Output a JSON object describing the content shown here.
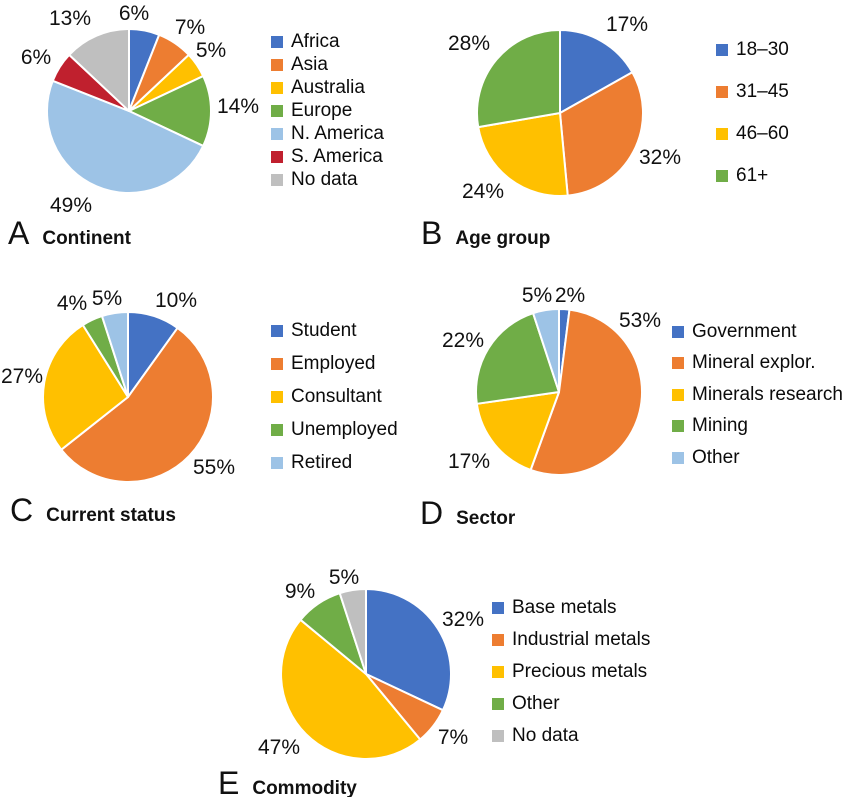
{
  "figure": {
    "name": "Survey results pie charts",
    "background": "#ffffff",
    "text_color": "#111111",
    "palette": {
      "blue": "#4472C4",
      "orange": "#ED7D31",
      "yellow": "#FFC000",
      "green": "#70AD47",
      "light_blue": "#9DC3E6",
      "dark_red": "#C0202E",
      "gray": "#BFBFBF"
    }
  },
  "chart_data": [
    {
      "type": "pie",
      "panel": "A",
      "title": "Continent",
      "legend_position": "right",
      "start_angle_deg": -90,
      "direction": "clockwise",
      "categories": [
        "Africa",
        "Asia",
        "Australia",
        "Europe",
        "N. America",
        "S. America",
        "No data"
      ],
      "values": [
        6,
        7,
        5,
        14,
        49,
        6,
        13
      ],
      "slice_labels": [
        "6%",
        "7%",
        "5%",
        "14%",
        "49%",
        "6%",
        "13%"
      ],
      "colors": [
        "#4472C4",
        "#ED7D31",
        "#FFC000",
        "#70AD47",
        "#9DC3E6",
        "#C0202E",
        "#BFBFBF"
      ]
    },
    {
      "type": "pie",
      "panel": "B",
      "title": "Age group",
      "legend_position": "right",
      "start_angle_deg": -90,
      "direction": "clockwise",
      "categories": [
        "18–30",
        "31–45",
        "46–60",
        "61+"
      ],
      "values": [
        17,
        32,
        24,
        28
      ],
      "slice_labels": [
        "17%",
        "32%",
        "24%",
        "28%"
      ],
      "colors": [
        "#4472C4",
        "#ED7D31",
        "#FFC000",
        "#70AD47"
      ]
    },
    {
      "type": "pie",
      "panel": "C",
      "title": "Current status",
      "legend_position": "right",
      "start_angle_deg": -90,
      "direction": "clockwise",
      "categories": [
        "Student",
        "Employed",
        "Consultant",
        "Unemployed",
        "Retired"
      ],
      "values": [
        10,
        55,
        27,
        4,
        5
      ],
      "slice_labels": [
        "10%",
        "55%",
        "27%",
        "4%",
        "5%"
      ],
      "colors": [
        "#4472C4",
        "#ED7D31",
        "#FFC000",
        "#70AD47",
        "#9DC3E6"
      ]
    },
    {
      "type": "pie",
      "panel": "D",
      "title": "Sector",
      "legend_position": "right",
      "start_angle_deg": -90,
      "direction": "clockwise",
      "categories": [
        "Government",
        "Mineral explor.",
        "Minerals research",
        "Mining",
        "Other"
      ],
      "values": [
        2,
        53,
        17,
        22,
        5
      ],
      "slice_labels": [
        "2%",
        "53%",
        "17%",
        "22%",
        "5%"
      ],
      "colors": [
        "#4472C4",
        "#ED7D31",
        "#FFC000",
        "#70AD47",
        "#9DC3E6"
      ]
    },
    {
      "type": "pie",
      "panel": "E",
      "title": "Commodity",
      "legend_position": "right",
      "start_angle_deg": -90,
      "direction": "clockwise",
      "categories": [
        "Base metals",
        "Industrial metals",
        "Precious metals",
        "Other",
        "No data"
      ],
      "values": [
        32,
        7,
        47,
        9,
        5
      ],
      "slice_labels": [
        "32%",
        "7%",
        "47%",
        "9%",
        "5%"
      ],
      "colors": [
        "#4472C4",
        "#ED7D31",
        "#FFC000",
        "#70AD47",
        "#BFBFBF"
      ]
    }
  ]
}
